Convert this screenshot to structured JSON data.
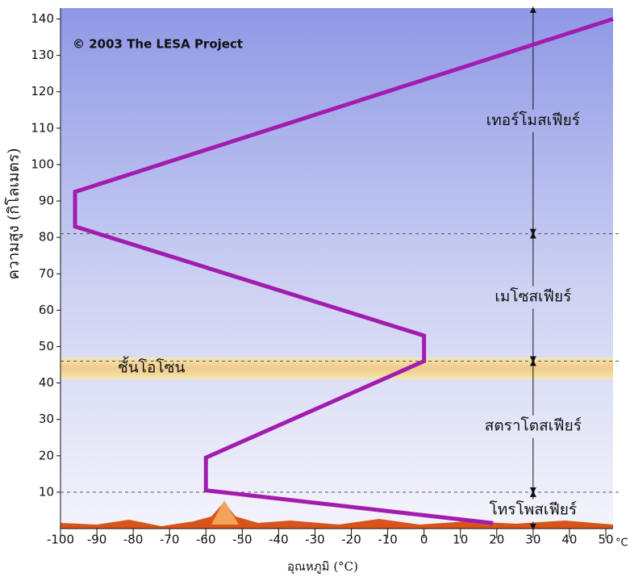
{
  "chart_data": {
    "type": "line",
    "copyright": "© 2003  The LESA Project",
    "ylabel": "ความสูง (กิโลเมตร)",
    "xlabel": "อุณหภูมิ (°C)",
    "x_unit": "°C",
    "x": [
      19,
      -60,
      -60,
      0,
      0,
      -96,
      -96,
      52
    ],
    "values": [
      1.5,
      10.5,
      19.5,
      46,
      53,
      83,
      92.5,
      140
    ],
    "color": "#a21caf",
    "xlim": [
      -100,
      52
    ],
    "ylim": [
      0,
      143
    ],
    "xticks": [
      -100,
      -90,
      -80,
      -70,
      -60,
      -50,
      -40,
      -30,
      -20,
      -10,
      0,
      10,
      20,
      30,
      40,
      50
    ],
    "yticks": [
      10,
      20,
      30,
      40,
      50,
      60,
      70,
      80,
      90,
      100,
      110,
      120,
      130,
      140
    ],
    "boundaries": [
      10,
      46,
      81
    ],
    "layers": [
      "โทรโพสเฟียร์",
      "สตราโตสเฟียร์",
      "เมโซสเฟียร์",
      "เทอร์โมสเฟียร์"
    ],
    "arrow_x": 30,
    "ozone_band": [
      41,
      47
    ],
    "ozone_label": "ชั้นโอโซน",
    "grid": false
  }
}
